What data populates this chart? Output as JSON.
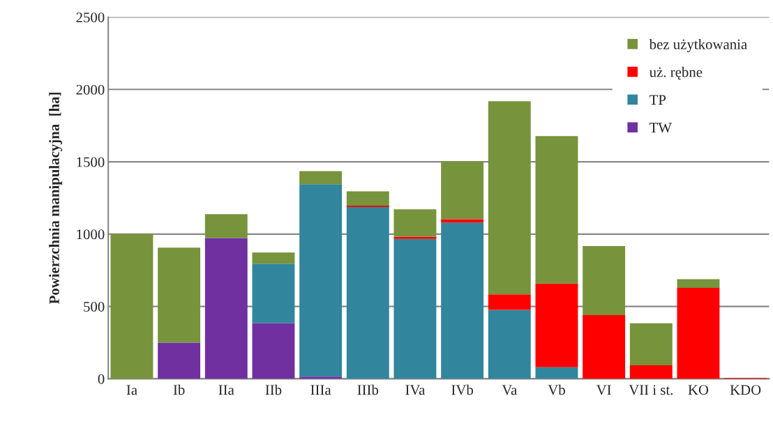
{
  "chart_data": {
    "type": "bar",
    "stacked": true,
    "ylabel": "Powierzchnia manipulacyjna  [ha]",
    "categories": [
      "Ia",
      "Ib",
      "IIa",
      "IIb",
      "IIIa",
      "IIIb",
      "IVa",
      "IVb",
      "Va",
      "Vb",
      "VI",
      "VII i st.",
      "KO",
      "KDO"
    ],
    "series": [
      {
        "name": "TW",
        "color": "#7030a0",
        "values": [
          0,
          250,
          973,
          385,
          15,
          0,
          0,
          0,
          0,
          0,
          0,
          0,
          0,
          0
        ]
      },
      {
        "name": "TP",
        "color": "#31859c",
        "values": [
          0,
          0,
          0,
          411,
          1330,
          1187,
          967,
          1080,
          477,
          80,
          0,
          0,
          0,
          0
        ]
      },
      {
        "name": "uż. rębne",
        "color": "#ff0000",
        "values": [
          0,
          0,
          0,
          0,
          0,
          10,
          14,
          23,
          107,
          578,
          440,
          94,
          628,
          5
        ]
      },
      {
        "name": "bez użytkowania",
        "color": "#77933c",
        "values": [
          1000,
          656,
          165,
          77,
          90,
          99,
          191,
          401,
          1334,
          1019,
          477,
          290,
          60,
          0
        ]
      }
    ],
    "ylim": [
      0,
      2500
    ],
    "yticks": [
      0,
      500,
      1000,
      1500,
      2000,
      2500
    ],
    "grid": "y",
    "legend": "top right"
  }
}
